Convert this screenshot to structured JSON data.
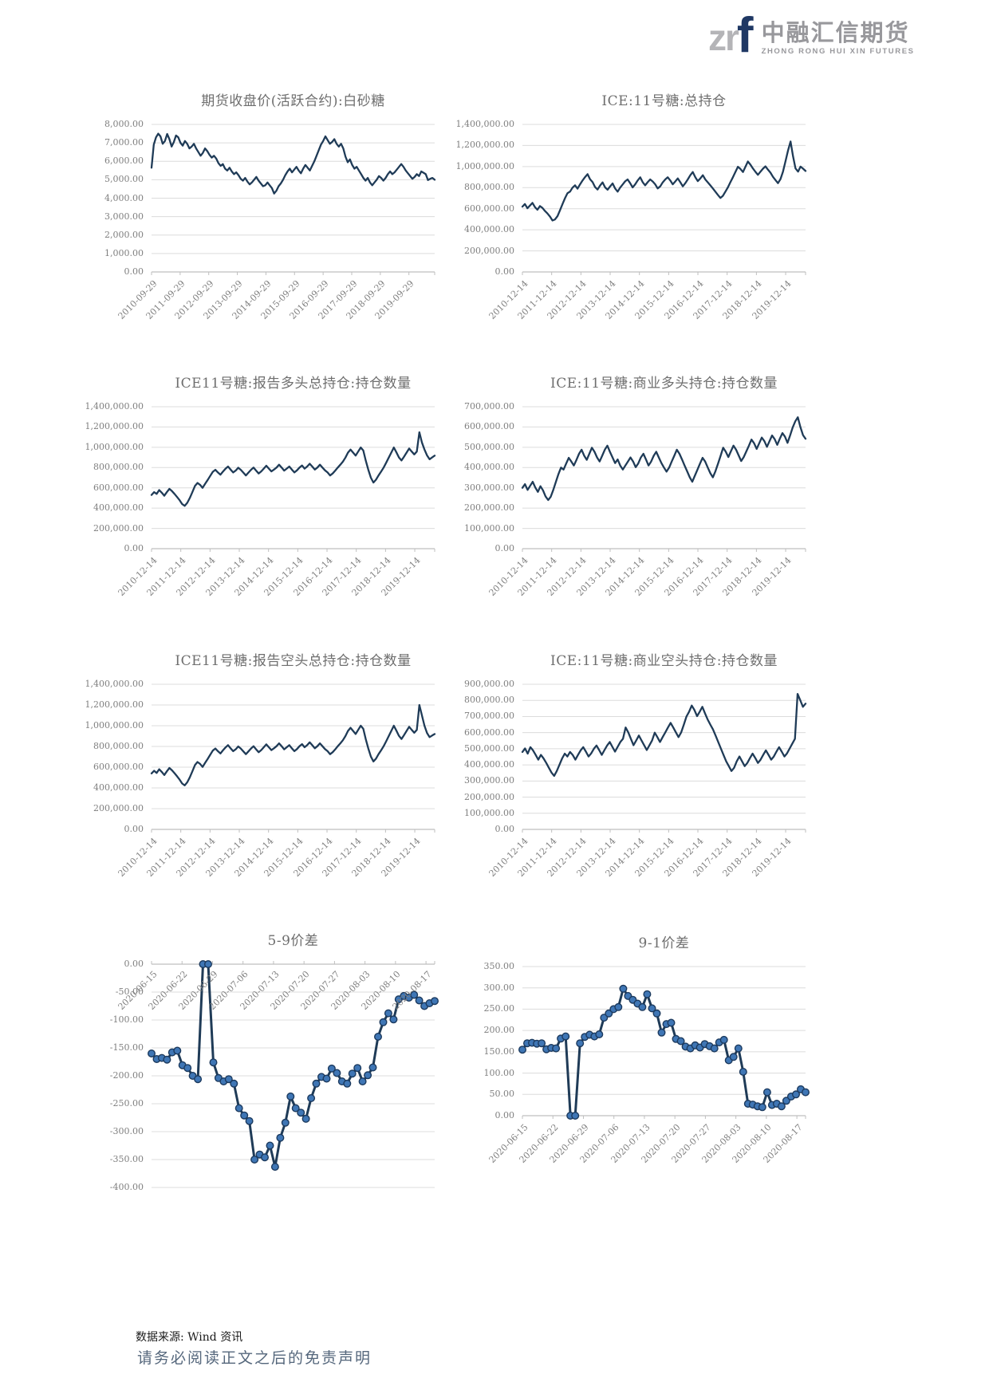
{
  "header": {
    "logo_zr": "zr",
    "logo_f": "f",
    "company_cn": "中融汇信期货",
    "company_en": "ZHONG RONG HUI XIN FUTURES"
  },
  "footer": {
    "source": "数据来源: Wind 资讯",
    "disclaimer": "请务必阅读正文之后的免责声明"
  },
  "colors": {
    "line": "#1f3b57",
    "marker_fill": "#3f76b5",
    "marker_stroke": "#1c3a5e",
    "grid": "#dcdcdc",
    "axis": "#bfbfbf",
    "title_text": "#6e6e6e",
    "tick_text": "#7f7f7f"
  },
  "chart_data": [
    {
      "type": "line",
      "title": "期货收盘价(活跃合约):白砂糖",
      "ylim": [
        0,
        8000
      ],
      "y_ticks": [
        "8,000.00",
        "7,000.00",
        "6,000.00",
        "5,000.00",
        "4,000.00",
        "3,000.00",
        "2,000.00",
        "1,000.00",
        "0.00"
      ],
      "x_labels": [
        "2010-09-29",
        "2011-09-29",
        "2012-09-29",
        "2013-09-29",
        "2014-09-29",
        "2015-09-29",
        "2016-09-29",
        "2017-09-29",
        "2018-09-29",
        "2019-09-29"
      ],
      "tick_step": 0.101,
      "x_label_position": "bottom",
      "markers": false,
      "legend": "none",
      "grid": true,
      "values": [
        5650,
        6900,
        7300,
        7500,
        7350,
        6950,
        7100,
        7480,
        7200,
        6800,
        7050,
        7400,
        7300,
        7000,
        6850,
        7100,
        6950,
        6700,
        6800,
        6950,
        6700,
        6500,
        6300,
        6450,
        6700,
        6550,
        6350,
        6200,
        6300,
        6150,
        5900,
        5750,
        5850,
        5600,
        5500,
        5650,
        5450,
        5300,
        5400,
        5250,
        5050,
        4950,
        5100,
        4900,
        4750,
        4850,
        5000,
        5150,
        4950,
        4800,
        4650,
        4700,
        4850,
        4700,
        4550,
        4250,
        4400,
        4650,
        4800,
        5000,
        5250,
        5450,
        5600,
        5400,
        5550,
        5700,
        5500,
        5350,
        5600,
        5800,
        5650,
        5500,
        5750,
        6000,
        6300,
        6600,
        6900,
        7100,
        7350,
        7150,
        6950,
        7050,
        7200,
        6950,
        6800,
        6950,
        6700,
        6250,
        5950,
        6100,
        5800,
        5600,
        5700,
        5500,
        5300,
        5100,
        4950,
        5100,
        4850,
        4700,
        4850,
        5000,
        5200,
        5100,
        4950,
        5100,
        5300,
        5450,
        5300,
        5400,
        5550,
        5700,
        5850,
        5700,
        5500,
        5350,
        5200,
        5050,
        5150,
        5300,
        5200,
        5450,
        5380,
        5300,
        4980,
        5050,
        5100,
        5000
      ]
    },
    {
      "type": "line",
      "title": "ICE:11号糖:总持仓",
      "ylim": [
        0,
        1400000
      ],
      "y_ticks": [
        "1,400,000.00",
        "1,200,000.00",
        "1,000,000.00",
        "800,000.00",
        "600,000.00",
        "400,000.00",
        "200,000.00",
        "0.00"
      ],
      "x_labels": [
        "2010-12-14",
        "2011-12-14",
        "2012-12-14",
        "2013-12-14",
        "2014-12-14",
        "2015-12-14",
        "2016-12-14",
        "2017-12-14",
        "2018-12-14",
        "2019-12-14"
      ],
      "tick_step": 0.1033,
      "x_label_position": "bottom",
      "markers": false,
      "legend": "none",
      "grid": true,
      "values": [
        620000.0,
        645000.0,
        605000.0,
        630000.0,
        655000.0,
        615000.0,
        590000.0,
        625000.0,
        608000.0,
        578000.0,
        555000.0,
        525000.0,
        488000.0,
        498000.0,
        530000.0,
        585000.0,
        645000.0,
        700000.0,
        748000.0,
        762000.0,
        800000.0,
        822000.0,
        790000.0,
        832000.0,
        868000.0,
        900000.0,
        928000.0,
        880000.0,
        852000.0,
        805000.0,
        782000.0,
        820000.0,
        850000.0,
        802000.0,
        780000.0,
        812000.0,
        840000.0,
        792000.0,
        762000.0,
        800000.0,
        830000.0,
        860000.0,
        878000.0,
        842000.0,
        802000.0,
        832000.0,
        868000.0,
        898000.0,
        852000.0,
        822000.0,
        852000.0,
        878000.0,
        858000.0,
        832000.0,
        792000.0,
        812000.0,
        850000.0,
        878000.0,
        898000.0,
        868000.0,
        832000.0,
        858000.0,
        888000.0,
        852000.0,
        812000.0,
        842000.0,
        878000.0,
        918000.0,
        948000.0,
        898000.0,
        862000.0,
        888000.0,
        918000.0,
        878000.0,
        850000.0,
        822000.0,
        792000.0,
        762000.0,
        732000.0,
        702000.0,
        722000.0,
        762000.0,
        802000.0,
        852000.0,
        898000.0,
        948000.0,
        998000.0,
        978000.0,
        948000.0,
        998000.0,
        1048000.0,
        1018000.0,
        982000.0,
        950000.0,
        922000.0,
        952000.0,
        980000.0,
        1002000.0,
        970000.0,
        942000.0,
        902000.0,
        872000.0,
        842000.0,
        882000.0,
        952000.0,
        1052000.0,
        1152000.0,
        1238000.0,
        1098000.0,
        982000.0,
        952000.0,
        1000000.0,
        980000.0,
        958000.0
      ]
    },
    {
      "type": "line",
      "title": "ICE11号糖:报告多头总持仓:持仓数量",
      "ylim": [
        0,
        1400000
      ],
      "y_ticks": [
        "1,400,000.00",
        "1,200,000.00",
        "1,000,000.00",
        "800,000.00",
        "600,000.00",
        "400,000.00",
        "200,000.00",
        "0.00"
      ],
      "x_labels": [
        "2010-12-14",
        "2011-12-14",
        "2012-12-14",
        "2013-12-14",
        "2014-12-14",
        "2015-12-14",
        "2016-12-14",
        "2017-12-14",
        "2018-12-14",
        "2019-12-14"
      ],
      "tick_step": 0.1033,
      "x_label_position": "bottom",
      "markers": false,
      "legend": "none",
      "grid": true,
      "values": [
        530000.0,
        558000.0,
        540000.0,
        578000.0,
        552000.0,
        522000.0,
        558000.0,
        590000.0,
        568000.0,
        540000.0,
        510000.0,
        478000.0,
        440000.0,
        422000.0,
        452000.0,
        500000.0,
        558000.0,
        618000.0,
        648000.0,
        630000.0,
        600000.0,
        640000.0,
        678000.0,
        718000.0,
        758000.0,
        778000.0,
        752000.0,
        730000.0,
        760000.0,
        788000.0,
        810000.0,
        780000.0,
        752000.0,
        770000.0,
        798000.0,
        778000.0,
        750000.0,
        722000.0,
        750000.0,
        778000.0,
        800000.0,
        770000.0,
        742000.0,
        762000.0,
        790000.0,
        818000.0,
        790000.0,
        762000.0,
        780000.0,
        800000.0,
        828000.0,
        800000.0,
        770000.0,
        790000.0,
        810000.0,
        780000.0,
        752000.0,
        772000.0,
        800000.0,
        820000.0,
        790000.0,
        810000.0,
        838000.0,
        810000.0,
        780000.0,
        800000.0,
        828000.0,
        800000.0,
        772000.0,
        752000.0,
        722000.0,
        742000.0,
        770000.0,
        800000.0,
        828000.0,
        858000.0,
        898000.0,
        948000.0,
        978000.0,
        948000.0,
        918000.0,
        958000.0,
        998000.0,
        968000.0,
        868000.0,
        778000.0,
        700000.0,
        652000.0,
        680000.0,
        722000.0,
        760000.0,
        800000.0,
        848000.0,
        898000.0,
        948000.0,
        998000.0,
        950000.0,
        900000.0,
        870000.0,
        908000.0,
        948000.0,
        988000.0,
        958000.0,
        930000.0,
        958000.0,
        1148000.0,
        1048000.0,
        978000.0,
        920000.0,
        882000.0,
        900000.0,
        918000.0
      ]
    },
    {
      "type": "line",
      "title": "ICE:11号糖:商业多头持仓:持仓数量",
      "ylim": [
        0,
        700000
      ],
      "y_ticks": [
        "700,000.00",
        "600,000.00",
        "500,000.00",
        "400,000.00",
        "300,000.00",
        "200,000.00",
        "100,000.00",
        "0.00"
      ],
      "x_labels": [
        "2010-12-14",
        "2011-12-14",
        "2012-12-14",
        "2013-12-14",
        "2014-12-14",
        "2015-12-14",
        "2016-12-14",
        "2017-12-14",
        "2018-12-14",
        "2019-12-14"
      ],
      "tick_step": 0.1033,
      "x_label_position": "bottom",
      "markers": false,
      "legend": "none",
      "grid": true,
      "values": [
        300000.0,
        318000.0,
        290000.0,
        310000.0,
        330000.0,
        302000.0,
        280000.0,
        308000.0,
        288000.0,
        258000.0,
        240000.0,
        256000.0,
        290000.0,
        330000.0,
        368000.0,
        400000.0,
        390000.0,
        420000.0,
        448000.0,
        430000.0,
        410000.0,
        438000.0,
        468000.0,
        488000.0,
        458000.0,
        438000.0,
        468000.0,
        498000.0,
        478000.0,
        450000.0,
        430000.0,
        458000.0,
        488000.0,
        508000.0,
        478000.0,
        450000.0,
        422000.0,
        440000.0,
        410000.0,
        390000.0,
        410000.0,
        430000.0,
        450000.0,
        430000.0,
        402000.0,
        420000.0,
        450000.0,
        468000.0,
        440000.0,
        410000.0,
        430000.0,
        458000.0,
        478000.0,
        450000.0,
        422000.0,
        400000.0,
        380000.0,
        400000.0,
        430000.0,
        458000.0,
        488000.0,
        468000.0,
        440000.0,
        410000.0,
        382000.0,
        352000.0,
        330000.0,
        360000.0,
        390000.0,
        420000.0,
        448000.0,
        430000.0,
        400000.0,
        372000.0,
        352000.0,
        382000.0,
        420000.0,
        458000.0,
        498000.0,
        478000.0,
        452000.0,
        480000.0,
        508000.0,
        488000.0,
        460000.0,
        432000.0,
        452000.0,
        480000.0,
        508000.0,
        538000.0,
        520000.0,
        492000.0,
        520000.0,
        548000.0,
        530000.0,
        502000.0,
        530000.0,
        558000.0,
        540000.0,
        512000.0,
        542000.0,
        570000.0,
        552000.0,
        522000.0,
        558000.0,
        598000.0,
        628000.0,
        648000.0,
        600000.0,
        560000.0,
        542000.0
      ]
    },
    {
      "type": "line",
      "title": "ICE11号糖:报告空头总持仓:持仓数量",
      "ylim": [
        0,
        1400000
      ],
      "y_ticks": [
        "1,400,000.00",
        "1,200,000.00",
        "1,000,000.00",
        "800,000.00",
        "600,000.00",
        "400,000.00",
        "200,000.00",
        "0.00"
      ],
      "x_labels": [
        "2010-12-14",
        "2011-12-14",
        "2012-12-14",
        "2013-12-14",
        "2014-12-14",
        "2015-12-14",
        "2016-12-14",
        "2017-12-14",
        "2018-12-14",
        "2019-12-14"
      ],
      "tick_step": 0.1033,
      "x_label_position": "bottom",
      "markers": false,
      "legend": "none",
      "grid": true,
      "values": [
        540000.0,
        565000.0,
        545000.0,
        580000.0,
        555000.0,
        525000.0,
        560000.0,
        592000.0,
        570000.0,
        542000.0,
        512000.0,
        480000.0,
        442000.0,
        425000.0,
        455000.0,
        502000.0,
        560000.0,
        620000.0,
        650000.0,
        632000.0,
        602000.0,
        642000.0,
        680000.0,
        720000.0,
        760000.0,
        780000.0,
        755000.0,
        732000.0,
        762000.0,
        790000.0,
        812000.0,
        782000.0,
        755000.0,
        772000.0,
        800000.0,
        780000.0,
        752000.0,
        725000.0,
        752000.0,
        780000.0,
        802000.0,
        772000.0,
        745000.0,
        765000.0,
        792000.0,
        820000.0,
        792000.0,
        765000.0,
        782000.0,
        802000.0,
        830000.0,
        802000.0,
        772000.0,
        792000.0,
        812000.0,
        782000.0,
        755000.0,
        775000.0,
        802000.0,
        822000.0,
        792000.0,
        812000.0,
        840000.0,
        812000.0,
        782000.0,
        802000.0,
        830000.0,
        802000.0,
        775000.0,
        755000.0,
        725000.0,
        745000.0,
        772000.0,
        802000.0,
        830000.0,
        860000.0,
        900000.0,
        950000.0,
        980000.0,
        950000.0,
        920000.0,
        960000.0,
        1000000.0,
        970000.0,
        870000.0,
        780000.0,
        702000.0,
        655000.0,
        682000.0,
        725000.0,
        762000.0,
        802000.0,
        850000.0,
        900000.0,
        950000.0,
        1000000.0,
        952000.0,
        902000.0,
        872000.0,
        910000.0,
        950000.0,
        990000.0,
        960000.0,
        932000.0,
        960000.0,
        1200000.0,
        1100000.0,
        1000000.0,
        930000.0,
        890000.0,
        905000.0,
        920000.0
      ]
    },
    {
      "type": "line",
      "title": "ICE:11号糖:商业空头持仓:持仓数量",
      "ylim": [
        0,
        900000
      ],
      "y_ticks": [
        "900,000.00",
        "800,000.00",
        "700,000.00",
        "600,000.00",
        "500,000.00",
        "400,000.00",
        "300,000.00",
        "200,000.00",
        "100,000.00",
        "0.00"
      ],
      "x_labels": [
        "2010-12-14",
        "2011-12-14",
        "2012-12-14",
        "2013-12-14",
        "2014-12-14",
        "2015-12-14",
        "2016-12-14",
        "2017-12-14",
        "2018-12-14",
        "2019-12-14"
      ],
      "tick_step": 0.1033,
      "x_label_position": "bottom",
      "markers": false,
      "legend": "none",
      "grid": true,
      "values": [
        480000.0,
        502000.0,
        470000.0,
        510000.0,
        490000.0,
        462000.0,
        432000.0,
        462000.0,
        440000.0,
        412000.0,
        382000.0,
        352000.0,
        332000.0,
        362000.0,
        400000.0,
        440000.0,
        470000.0,
        452000.0,
        480000.0,
        462000.0,
        432000.0,
        462000.0,
        490000.0,
        510000.0,
        482000.0,
        452000.0,
        472000.0,
        500000.0,
        520000.0,
        492000.0,
        462000.0,
        492000.0,
        520000.0,
        542000.0,
        512000.0,
        482000.0,
        512000.0,
        542000.0,
        562000.0,
        632000.0,
        602000.0,
        562000.0,
        522000.0,
        552000.0,
        582000.0,
        552000.0,
        522000.0,
        492000.0,
        522000.0,
        552000.0,
        600000.0,
        572000.0,
        542000.0,
        572000.0,
        602000.0,
        632000.0,
        660000.0,
        632000.0,
        602000.0,
        572000.0,
        602000.0,
        650000.0,
        700000.0,
        730000.0,
        768000.0,
        740000.0,
        702000.0,
        730000.0,
        760000.0,
        720000.0,
        682000.0,
        650000.0,
        620000.0,
        582000.0,
        542000.0,
        502000.0,
        462000.0,
        422000.0,
        392000.0,
        362000.0,
        382000.0,
        422000.0,
        452000.0,
        422000.0,
        392000.0,
        412000.0,
        442000.0,
        470000.0,
        442000.0,
        412000.0,
        432000.0,
        462000.0,
        490000.0,
        462000.0,
        432000.0,
        452000.0,
        482000.0,
        510000.0,
        482000.0,
        452000.0,
        472000.0,
        502000.0,
        532000.0,
        562000.0,
        840000.0,
        800000.0,
        760000.0,
        780000.0
      ]
    },
    {
      "type": "line",
      "title": "5-9价差",
      "ylim": [
        -400,
        0
      ],
      "y_ticks": [
        "0.00",
        "-50.00",
        "-100.00",
        "-150.00",
        "-200.00",
        "-250.00",
        "-300.00",
        "-350.00",
        "-400.00"
      ],
      "x_labels": [
        "2020-06-15",
        "2020-06-22",
        "2020-06-29",
        "2020-07-06",
        "2020-07-13",
        "2020-07-20",
        "2020-07-27",
        "2020-08-03",
        "2020-08-10",
        "2020-08-17"
      ],
      "tick_step": 0.1077,
      "x_label_position": "top",
      "markers": true,
      "legend": "none",
      "grid": true,
      "values": [
        -160,
        -170,
        -168,
        -171,
        -158,
        -155,
        -181,
        -186,
        -200,
        -206,
        0,
        0,
        -176,
        -204,
        -210,
        -206,
        -214,
        -258,
        -271,
        -281,
        -350,
        -341,
        -346,
        -325,
        -363,
        -311,
        -284,
        -237,
        -258,
        -266,
        -277,
        -240,
        -214,
        -202,
        -205,
        -187,
        -195,
        -210,
        -214,
        -196,
        -186,
        -210,
        -199,
        -185,
        -130,
        -104,
        -88,
        -99,
        -63,
        -57,
        -60,
        -55,
        -65,
        -75,
        -70,
        -66
      ]
    },
    {
      "type": "line",
      "title": "9-1价差",
      "ylim": [
        0,
        350
      ],
      "y_ticks": [
        "350.00",
        "300.00",
        "250.00",
        "200.00",
        "150.00",
        "100.00",
        "50.00",
        "0.00"
      ],
      "x_labels": [
        "2020-06-15",
        "2020-06-22",
        "2020-06-29",
        "2020-07-06",
        "2020-07-13",
        "2020-07-20",
        "2020-07-27",
        "2020-08-03",
        "2020-08-10",
        "2020-08-17"
      ],
      "tick_step": 0.1077,
      "x_label_position": "bottom",
      "markers": true,
      "legend": "none",
      "grid": true,
      "values": [
        155,
        170,
        171,
        169,
        170,
        156,
        159,
        158,
        181,
        186,
        0,
        0,
        170,
        185,
        190,
        186,
        191,
        230,
        240,
        250,
        255,
        298,
        281,
        272,
        263,
        255,
        285,
        252,
        240,
        195,
        215,
        218,
        180,
        175,
        162,
        158,
        165,
        160,
        168,
        163,
        158,
        172,
        178,
        130,
        138,
        158,
        103,
        28,
        26,
        22,
        20,
        55,
        25,
        28,
        22,
        35,
        45,
        50,
        62,
        55
      ]
    }
  ]
}
